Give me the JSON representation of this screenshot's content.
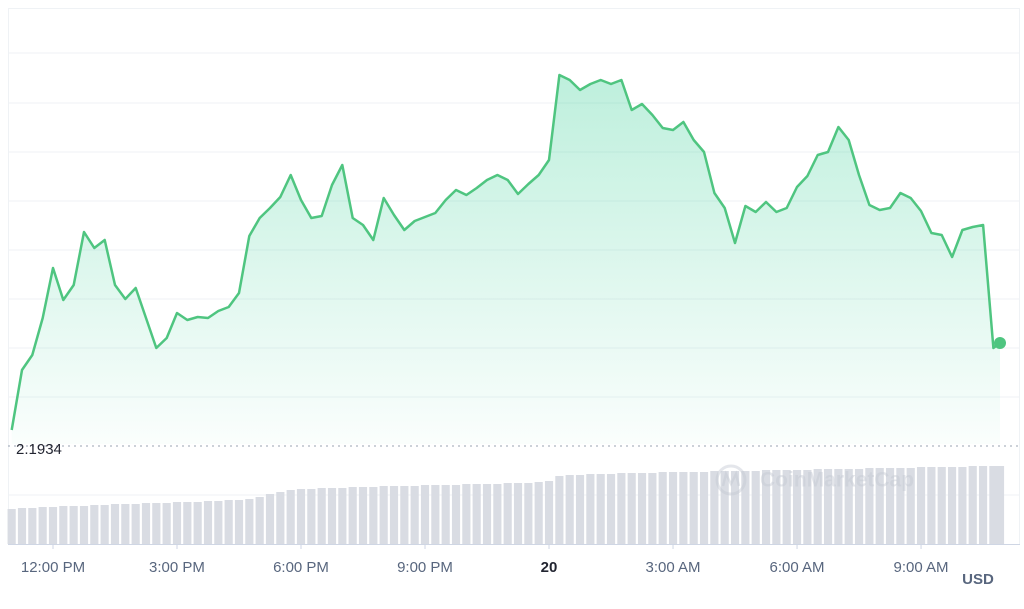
{
  "chart_data": {
    "type": "line",
    "color": "#4fc580",
    "x": [
      -1,
      -0.75,
      -0.5,
      -0.25,
      0,
      0.25,
      0.5,
      0.75,
      1,
      1.25,
      1.5,
      1.75,
      2,
      2.25,
      2.5,
      2.75,
      3,
      3.25,
      3.5,
      3.75,
      4,
      4.25,
      4.5,
      4.75,
      5,
      5.25,
      5.5,
      5.75,
      6,
      6.25,
      6.5,
      6.75,
      7,
      7.25,
      7.5,
      7.75,
      8,
      8.25,
      8.5,
      8.75,
      9,
      9.25,
      9.5,
      9.75,
      10,
      10.25,
      10.5,
      10.75,
      11,
      11.25,
      11.5,
      11.75,
      12,
      12.25,
      12.5,
      12.75,
      13,
      13.25,
      13.5,
      13.75,
      14,
      14.25,
      14.5,
      14.75,
      15,
      15.25,
      15.5,
      15.75,
      16,
      16.25,
      16.5,
      16.75,
      17,
      17.25,
      17.5,
      17.75,
      18,
      18.25,
      18.5,
      18.75,
      19,
      19.25,
      19.5,
      19.75,
      20,
      20.25,
      20.5,
      20.75,
      21,
      21.25,
      21.5,
      21.75,
      22,
      22.25,
      22.5,
      22.75,
      22.91
    ],
    "values": [
      2.1966,
      2.2086,
      2.2116,
      2.219,
      2.229,
      2.2226,
      2.2256,
      2.2362,
      2.233,
      2.2346,
      2.2256,
      2.2228,
      2.225,
      2.219,
      2.213,
      2.215,
      2.22,
      2.2186,
      2.2192,
      2.219,
      2.2204,
      2.2212,
      2.224,
      2.2354,
      2.239,
      2.241,
      2.2432,
      2.2476,
      2.2426,
      2.239,
      2.2394,
      2.2456,
      2.2496,
      2.239,
      2.2376,
      2.2346,
      2.243,
      2.2396,
      2.2366,
      2.2384,
      2.2392,
      2.24,
      2.2426,
      2.2446,
      2.2436,
      2.245,
      2.2466,
      2.2476,
      2.2466,
      2.2438,
      2.2458,
      2.2476,
      2.2506,
      2.2676,
      2.2666,
      2.2646,
      2.2658,
      2.2666,
      2.2658,
      2.2666,
      2.2606,
      2.2618,
      2.2596,
      2.257,
      2.2566,
      2.2582,
      2.2546,
      2.2522,
      2.244,
      2.241,
      2.234,
      2.2414,
      2.2402,
      2.2422,
      2.2402,
      2.241,
      2.2452,
      2.2474,
      2.2516,
      2.2522,
      2.2572,
      2.2546,
      2.2476,
      2.2416,
      2.2406,
      2.241,
      2.244,
      2.243,
      2.2404,
      2.236,
      2.2356,
      2.2312,
      2.2366,
      2.2372,
      2.2376,
      2.213,
      2.214
    ],
    "xlim": [
      -1.04,
      22.91
    ],
    "xticks": [
      {
        "value": 0,
        "label": "12:00 PM"
      },
      {
        "value": 3,
        "label": "3:00 PM"
      },
      {
        "value": 6,
        "label": "6:00 PM"
      },
      {
        "value": 9,
        "label": "9:00 PM"
      },
      {
        "value": 12,
        "label": "20"
      },
      {
        "value": 15,
        "label": "3:00 AM"
      },
      {
        "value": 18,
        "label": "6:00 AM"
      },
      {
        "value": 21,
        "label": "9:00 AM"
      }
    ],
    "ylim": [
      2.1738,
      2.2816
    ],
    "yticks": [
      2.2032,
      2.213,
      2.2228,
      2.2326,
      2.2424,
      2.2522,
      2.262,
      2.272
    ],
    "grid": true,
    "reference_line": 2.1934,
    "volume": {
      "color": "#d9dce3",
      "ylim": [
        0,
        100
      ],
      "values": [
        35,
        36,
        36,
        37,
        37,
        38,
        38,
        38,
        39,
        39,
        40,
        40,
        40,
        41,
        41,
        41,
        42,
        42,
        42,
        43,
        43,
        44,
        44,
        45,
        47,
        50,
        52,
        54,
        55,
        55,
        56,
        56,
        56,
        57,
        57,
        57,
        58,
        58,
        58,
        58,
        59,
        59,
        59,
        59,
        60,
        60,
        60,
        60,
        61,
        61,
        61,
        62,
        63,
        68,
        69,
        69,
        70,
        70,
        70,
        71,
        71,
        71,
        71,
        72,
        72,
        72,
        72,
        72,
        73,
        73,
        73,
        73,
        73,
        74,
        74,
        74,
        74,
        74,
        75,
        75,
        75,
        75,
        75,
        76,
        76,
        76,
        76,
        76,
        77,
        77,
        77,
        77,
        77,
        78,
        78,
        78,
        78
      ]
    },
    "currency": "USD",
    "watermark": "CoinMarketCap"
  }
}
